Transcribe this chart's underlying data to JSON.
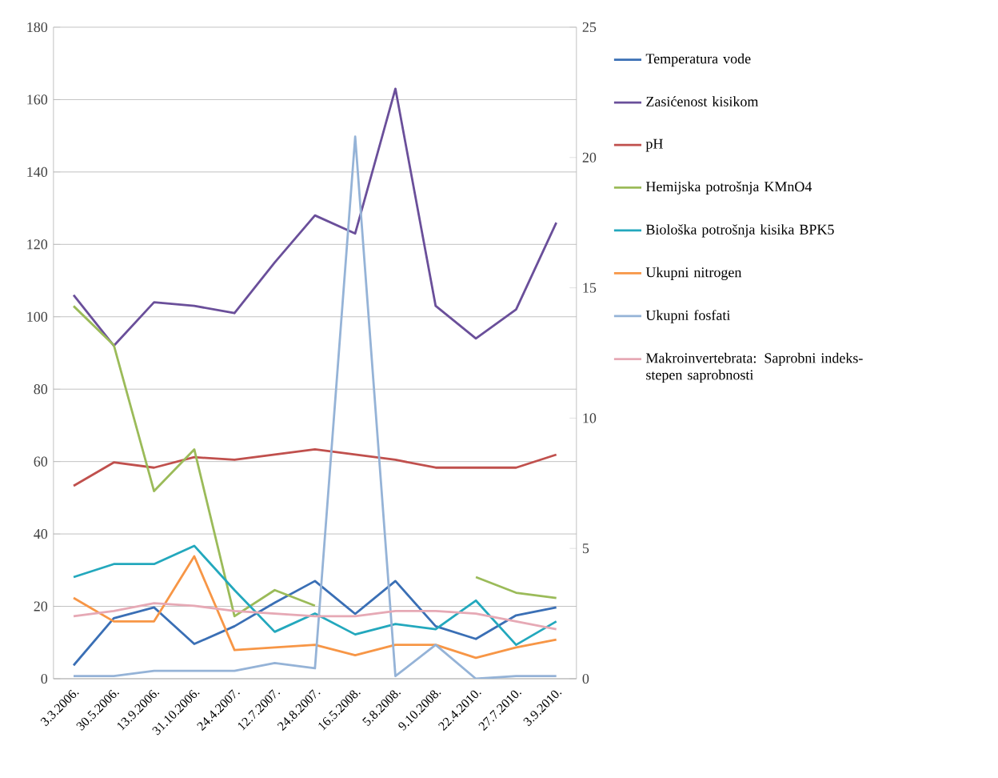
{
  "chart_data": {
    "type": "line",
    "categories": [
      "3.3.2006.",
      "30.5.2006.",
      "13.9.2006.",
      "31.10.2006.",
      "24.4.2007.",
      "12.7.2007.",
      "24.8.2007.",
      "16.5.2008.",
      "5.8.2008.",
      "9.10.2008.",
      "22.4.2010.",
      "27.7.2010.",
      "3.9.2010."
    ],
    "series": [
      {
        "name": "Temperatura vode",
        "color": "#3a6fb5",
        "values": [
          3.7,
          16.7,
          19.7,
          9.6,
          14.5,
          21,
          27,
          17.9,
          27,
          14.5,
          11,
          17.5,
          19.7
        ]
      },
      {
        "name": "Zasićenost kisikom",
        "color": "#6a4f9a",
        "values": [
          106,
          92,
          104,
          103,
          101,
          115,
          128,
          123,
          163,
          103,
          94,
          102,
          126
        ]
      },
      {
        "name": "pH",
        "color": "#c0504d",
        "axis": "y2",
        "values": [
          7.4,
          8.3,
          8.1,
          8.5,
          8.4,
          8.6,
          8.8,
          8.6,
          8.4,
          8.1,
          8.1,
          8.1,
          8.6
        ]
      },
      {
        "name": "Hemijska potrošnja KMnO4",
        "color": "#9bbb59",
        "axis": "y2",
        "values": [
          14.3,
          12.8,
          7.2,
          8.8,
          2.4,
          3.4,
          2.8,
          null,
          null,
          null,
          3.9,
          3.3,
          3.1
        ]
      },
      {
        "name": "Biološka potrošnja kisika BPK5",
        "color": "#23a8bd",
        "axis": "y2",
        "values": [
          3.9,
          4.4,
          4.4,
          5.1,
          3.4,
          1.8,
          2.5,
          1.7,
          2.1,
          1.9,
          3.0,
          1.3,
          2.2
        ]
      },
      {
        "name": "Ukupni nitrogen",
        "color": "#f79646",
        "axis": "y2",
        "values": [
          3.1,
          2.2,
          2.2,
          4.7,
          1.1,
          1.2,
          1.3,
          0.9,
          1.3,
          1.3,
          0.8,
          1.2,
          1.5
        ]
      },
      {
        "name": "Ukupni fosfati",
        "color": "#95b3d7",
        "axis": "y2",
        "values": [
          0.1,
          0.1,
          0.3,
          0.3,
          0.3,
          0.6,
          0.4,
          20.8,
          0.1,
          1.3,
          0,
          0.1,
          0.1
        ]
      },
      {
        "name": "Makroinvertebrata: Saprobni indeks-stepen saprobnosti",
        "color": "#e6a9b5",
        "axis": "y2",
        "values": [
          2.4,
          2.6,
          2.9,
          2.8,
          2.6,
          2.5,
          2.4,
          2.4,
          2.6,
          2.6,
          2.5,
          2.2,
          1.9
        ]
      }
    ],
    "ylim": [
      0,
      180
    ],
    "yticks": [
      0,
      20,
      40,
      60,
      80,
      100,
      120,
      140,
      160,
      180
    ],
    "y2lim": [
      0,
      25
    ],
    "y2ticks": [
      0,
      5,
      10,
      15,
      20,
      25
    ],
    "grid": "y",
    "legend": "right"
  }
}
